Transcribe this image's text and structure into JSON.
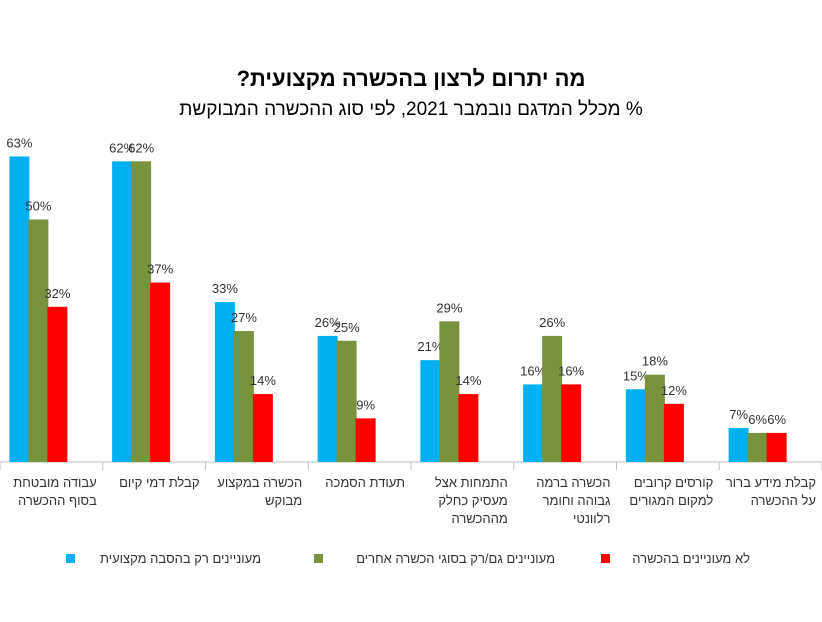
{
  "chart_data": {
    "type": "bar",
    "title": "מה יתרום לרצון בהכשרה מקצועית?",
    "subtitle": "% מכלל המדגם נובמבר 2021, לפי סוג ההכשרה המבוקשת",
    "categories": [
      [
        "עבודה מובטחת",
        "בסוף ההכשרה"
      ],
      [
        "קבלת דמי קיום"
      ],
      [
        "הכשרה במקצוע",
        "מבוקש"
      ],
      [
        "תעודת הסמכה"
      ],
      [
        "התמחות אצל",
        "מעסיק כחלק",
        "מההכשרה"
      ],
      [
        "הכשרה ברמה",
        "גבוהה וחומר",
        "רלוונטי"
      ],
      [
        "קורסים קרובים",
        "למקום המגורים"
      ],
      [
        "קבלת מידע ברור",
        "על ההכשרה"
      ]
    ],
    "series": [
      {
        "name": "מעוניינים  רק בהסבה מקצועית",
        "color": "#00B0F0",
        "values": [
          63,
          62,
          33,
          26,
          21,
          16,
          15,
          7
        ]
      },
      {
        "name": "מעוניינים גם/רק בסוגי הכשרה אחרים",
        "color": "#77933C",
        "values": [
          50,
          62,
          27,
          25,
          29,
          26,
          18,
          6
        ]
      },
      {
        "name": "לא מעוניינים בהכשרה",
        "color": "#FF0000",
        "values": [
          32,
          37,
          14,
          9,
          14,
          16,
          12,
          6
        ]
      }
    ],
    "value_suffix": "%",
    "ylim": [
      0,
      70
    ],
    "grid": false,
    "legend": "bottom"
  }
}
